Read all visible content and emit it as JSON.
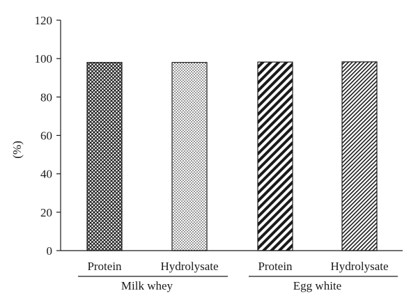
{
  "chart_data": {
    "type": "bar",
    "title": "",
    "xlabel": "",
    "ylabel": "(%)",
    "ylim": [
      0,
      120
    ],
    "yticks": [
      0,
      20,
      40,
      60,
      80,
      100,
      120
    ],
    "grid": false,
    "legend": "none",
    "categories": [
      "Protein",
      "Hydrolysate",
      "Protein",
      "Hydrolysate"
    ],
    "groups": [
      {
        "label": "Milk whey",
        "categories": [
          0,
          1
        ]
      },
      {
        "label": "Egg white",
        "categories": [
          2,
          3
        ]
      }
    ],
    "values": [
      98,
      98,
      98.2,
      98.3
    ],
    "patterns": [
      "crosshatch",
      "dots",
      "wide-diagonal",
      "fine-diagonal"
    ],
    "colors": {
      "ink": "#1a1a1a",
      "background": "#ffffff"
    }
  }
}
